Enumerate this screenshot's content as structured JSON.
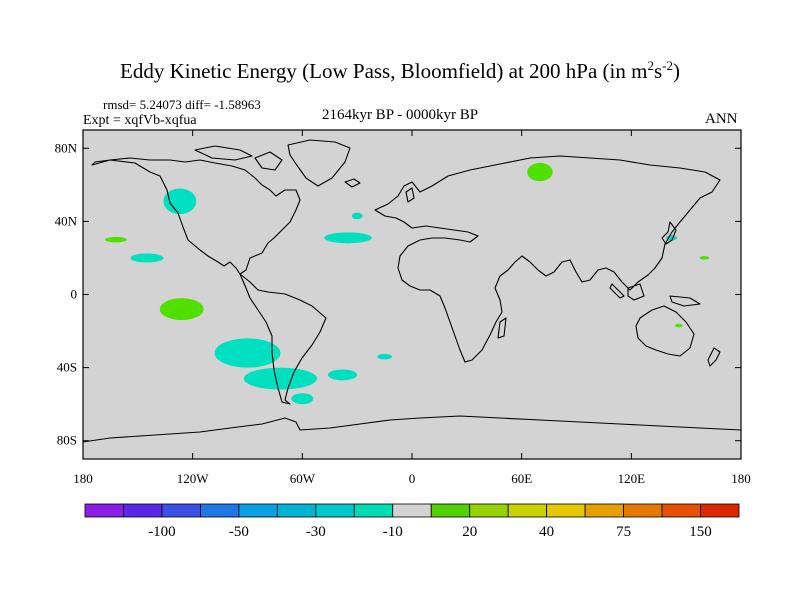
{
  "title": {
    "main": "Eddy Kinetic Energy (Low Pass, Bloomfield) at 200 hPa (in m",
    "sup1": "2",
    "mid": "s",
    "sup2": "-2",
    "close": ")"
  },
  "stats": "rmsd= 5.24073 diff= -1.58963",
  "experiment": "Expt = xqfVb-xqfua",
  "period": "2164kyr BP - 0000kyr BP",
  "season": "ANN",
  "map": {
    "lon_range": [
      -180,
      180
    ],
    "lat_range": [
      -90,
      90
    ],
    "land_color": "#d3d3d3",
    "y_ticks": [
      {
        "lat": 80,
        "label": "80N"
      },
      {
        "lat": 40,
        "label": "40N"
      },
      {
        "lat": 0,
        "label": "0"
      },
      {
        "lat": -40,
        "label": "40S"
      },
      {
        "lat": -80,
        "label": "80S"
      }
    ],
    "x_ticks": [
      {
        "lon": -180,
        "label": "180"
      },
      {
        "lon": -120,
        "label": "120W"
      },
      {
        "lon": -60,
        "label": "60W"
      },
      {
        "lon": 0,
        "label": "0"
      },
      {
        "lon": 60,
        "label": "60E"
      },
      {
        "lon": 120,
        "label": "120E"
      },
      {
        "lon": 180,
        "label": "180"
      }
    ],
    "anomalies": [
      {
        "name": "north-pacific-negative",
        "lon": -127,
        "lat": 51,
        "rlon": 9,
        "rlat": 7,
        "color": "#00e0c0"
      },
      {
        "name": "north-atlantic-negative",
        "lon": -35,
        "lat": 31,
        "rlon": 13,
        "rlat": 3,
        "color": "#00e0c0"
      },
      {
        "name": "subtropical-pacific-negative",
        "lon": -145,
        "lat": 20,
        "rlon": 9,
        "rlat": 2.5,
        "color": "#00e0c0"
      },
      {
        "name": "atlantic-small-negative",
        "lon": -30,
        "lat": 43,
        "rlon": 3,
        "rlat": 1.8,
        "color": "#00e0c0"
      },
      {
        "name": "east-pacific-positive",
        "lon": -162,
        "lat": 30,
        "rlon": 6,
        "rlat": 1.5,
        "color": "#50e000"
      },
      {
        "name": "tropical-pacific-positive",
        "lon": -126,
        "lat": -8,
        "rlon": 12,
        "rlat": 6,
        "color": "#50e000"
      },
      {
        "name": "siberia-positive",
        "lon": 70,
        "lat": 67,
        "rlon": 7,
        "rlat": 5,
        "color": "#50e000"
      },
      {
        "name": "japan-negative",
        "lon": 142,
        "lat": 31,
        "rlon": 3,
        "rlat": 1.5,
        "color": "#00e0c0"
      },
      {
        "name": "west-pacific-positive",
        "lon": 160,
        "lat": 20,
        "rlon": 2.5,
        "rlat": 1,
        "color": "#50e000"
      },
      {
        "name": "south-pacific-negative",
        "lon": -90,
        "lat": -32,
        "rlon": 18,
        "rlat": 8,
        "color": "#00e0c0"
      },
      {
        "name": "south-america-negative",
        "lon": -72,
        "lat": -46,
        "rlon": 20,
        "rlat": 6,
        "color": "#00e0c0"
      },
      {
        "name": "south-atlantic-negative",
        "lon": -38,
        "lat": -44,
        "rlon": 8,
        "rlat": 3,
        "color": "#00e0c0"
      },
      {
        "name": "drake-negative",
        "lon": -60,
        "lat": -57,
        "rlon": 6,
        "rlat": 3,
        "color": "#00e0c0"
      },
      {
        "name": "south-atlantic-small-negative",
        "lon": -15,
        "lat": -34,
        "rlon": 4,
        "rlat": 1.5,
        "color": "#00e0c0"
      },
      {
        "name": "australia-positive",
        "lon": 146,
        "lat": -17,
        "rlon": 2,
        "rlat": 1,
        "color": "#50e000"
      }
    ]
  },
  "colorbar": {
    "colors": [
      "#8a1ee6",
      "#5a28e6",
      "#3c50e6",
      "#1e78e6",
      "#0aa0e6",
      "#00b4d2",
      "#00c8cc",
      "#00dcb4",
      "#d3d3d3",
      "#50d200",
      "#96d200",
      "#c8d200",
      "#e6c800",
      "#e6a000",
      "#e67800",
      "#e65000",
      "#dc2800"
    ],
    "labels": [
      {
        "index": 2,
        "text": "-100"
      },
      {
        "index": 4,
        "text": "-50"
      },
      {
        "index": 6,
        "text": "-30"
      },
      {
        "index": 8,
        "text": "-10"
      },
      {
        "index": 10,
        "text": "20"
      },
      {
        "index": 12,
        "text": "40"
      },
      {
        "index": 14,
        "text": "75"
      },
      {
        "index": 16,
        "text": "150"
      }
    ]
  }
}
